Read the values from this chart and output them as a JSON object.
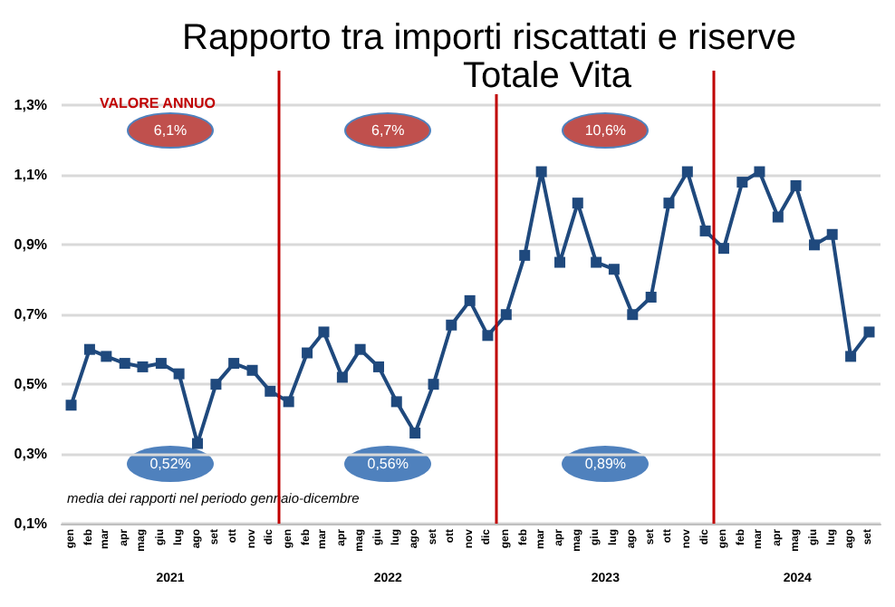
{
  "chart_data": {
    "type": "line",
    "title": "Rapporto tra importi riscattati e riserve",
    "subtitle": "Totale Vita",
    "x": [
      "2021-01",
      "2021-02",
      "2021-03",
      "2021-04",
      "2021-05",
      "2021-06",
      "2021-07",
      "2021-08",
      "2021-09",
      "2021-10",
      "2021-11",
      "2021-12",
      "2022-01",
      "2022-02",
      "2022-03",
      "2022-04",
      "2022-05",
      "2022-06",
      "2022-07",
      "2022-08",
      "2022-09",
      "2022-10",
      "2022-11",
      "2022-12",
      "2023-01",
      "2023-02",
      "2023-03",
      "2023-04",
      "2023-05",
      "2023-06",
      "2023-07",
      "2023-08",
      "2023-09",
      "2023-10",
      "2023-11",
      "2023-12",
      "2024-01",
      "2024-02",
      "2024-03",
      "2024-04",
      "2024-05",
      "2024-06",
      "2024-07",
      "2024-08",
      "2024-09"
    ],
    "series": [
      {
        "color": "#1f497d",
        "values": [
          0.44,
          0.6,
          0.58,
          0.56,
          0.55,
          0.56,
          0.53,
          0.33,
          0.5,
          0.56,
          0.54,
          0.48,
          0.45,
          0.59,
          0.65,
          0.52,
          0.6,
          0.55,
          0.45,
          0.36,
          0.5,
          0.67,
          0.74,
          0.64,
          0.7,
          0.87,
          1.11,
          0.85,
          1.02,
          0.85,
          0.83,
          0.7,
          0.75,
          1.02,
          1.11,
          0.94,
          0.89,
          1.08,
          1.11,
          0.98,
          1.07,
          0.9,
          0.93,
          0.58,
          0.65
        ]
      }
    ],
    "xlim": [
      "2020-12-16",
      "2024-09-20"
    ],
    "xticks": [
      {
        "value": "2021-01",
        "label": "gen"
      },
      {
        "value": "2021-02",
        "label": "feb"
      },
      {
        "value": "2021-03",
        "label": "mar"
      },
      {
        "value": "2021-04",
        "label": "apr"
      },
      {
        "value": "2021-05",
        "label": "mag"
      },
      {
        "value": "2021-06",
        "label": "giu"
      },
      {
        "value": "2021-07",
        "label": "lug"
      },
      {
        "value": "2021-08",
        "label": "ago"
      },
      {
        "value": "2021-09",
        "label": "set"
      },
      {
        "value": "2021-10",
        "label": "ott"
      },
      {
        "value": "2021-11",
        "label": "nov"
      },
      {
        "value": "2021-12",
        "label": "dic"
      },
      {
        "value": "2022-01",
        "label": "gen"
      },
      {
        "value": "2022-02",
        "label": "feb"
      },
      {
        "value": "2022-03",
        "label": "mar"
      },
      {
        "value": "2022-04",
        "label": "apr"
      },
      {
        "value": "2022-05",
        "label": "mag"
      },
      {
        "value": "2022-06",
        "label": "giu"
      },
      {
        "value": "2022-07",
        "label": "lug"
      },
      {
        "value": "2022-08",
        "label": "ago"
      },
      {
        "value": "2022-09",
        "label": "set"
      },
      {
        "value": "2022-10",
        "label": "ott"
      },
      {
        "value": "2022-11",
        "label": "nov"
      },
      {
        "value": "2022-12",
        "label": "dic"
      },
      {
        "value": "2023-01",
        "label": "gen"
      },
      {
        "value": "2023-02",
        "label": "feb"
      },
      {
        "value": "2023-03",
        "label": "mar"
      },
      {
        "value": "2023-04",
        "label": "apr"
      },
      {
        "value": "2023-05",
        "label": "mag"
      },
      {
        "value": "2023-06",
        "label": "giu"
      },
      {
        "value": "2023-07",
        "label": "lug"
      },
      {
        "value": "2023-08",
        "label": "ago"
      },
      {
        "value": "2023-09",
        "label": "set"
      },
      {
        "value": "2023-10",
        "label": "ott"
      },
      {
        "value": "2023-11",
        "label": "nov"
      },
      {
        "value": "2023-12",
        "label": "dic"
      },
      {
        "value": "2024-01",
        "label": "gen"
      },
      {
        "value": "2024-02",
        "label": "feb"
      },
      {
        "value": "2024-03",
        "label": "mar"
      },
      {
        "value": "2024-04",
        "label": "apr"
      },
      {
        "value": "2024-05",
        "label": "mag"
      },
      {
        "value": "2024-06",
        "label": "giu"
      },
      {
        "value": "2024-07",
        "label": "lug"
      },
      {
        "value": "2024-08",
        "label": "ago"
      },
      {
        "value": "2024-09",
        "label": "set"
      }
    ],
    "ylim": [
      0.1,
      1.4
    ],
    "yticks": [
      {
        "value": 0.1,
        "label": "0,1%"
      },
      {
        "value": 0.3,
        "label": "0,3%"
      },
      {
        "value": 0.5,
        "label": "0,5%"
      },
      {
        "value": 0.7,
        "label": "0,7%"
      },
      {
        "value": 0.9,
        "label": "0,9%"
      },
      {
        "value": 1.1,
        "label": "1,1%"
      },
      {
        "value": 1.3,
        "label": "1,3%"
      }
    ],
    "ref_lines": [
      {
        "axis": "x",
        "value": "2021-12-16",
        "color": "#c00000"
      },
      {
        "axis": "x",
        "value": "2022-12-16",
        "color": "#c00000"
      },
      {
        "axis": "x",
        "value": "2023-12-16",
        "color": "#c00000"
      }
    ],
    "annotations": [
      "VALORE ANNUO",
      "media dei rapporti nel periodo gennaio-dicembre",
      "6,1%",
      "6,7%",
      "10,6%",
      "0,52%",
      "0,56%",
      "0,89%",
      "2021",
      "2022",
      "2023",
      "2024"
    ],
    "grid": "y",
    "marker": "square",
    "line_style": "solid"
  }
}
